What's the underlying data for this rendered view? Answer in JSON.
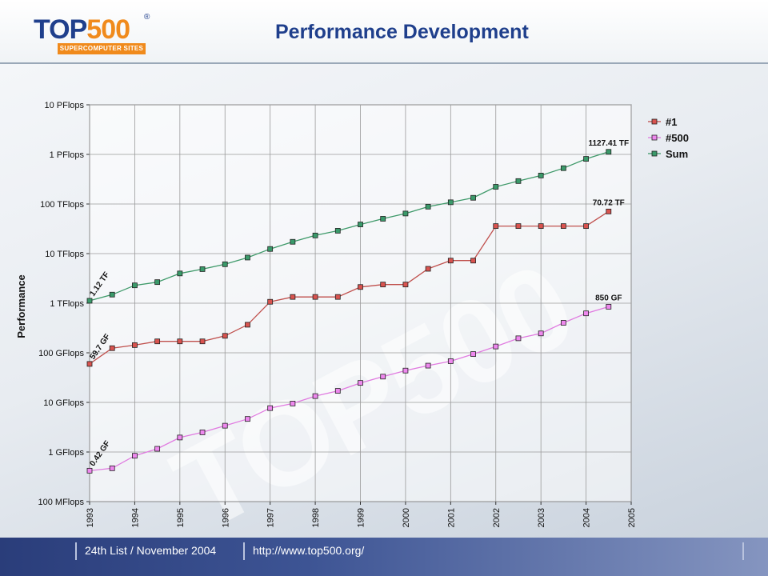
{
  "header": {
    "logo_text_top": "TOP",
    "logo_text_num": "500",
    "logo_reg": "®",
    "logo_sub": "SUPERCOMPUTER SITES",
    "title": "Performance Development"
  },
  "watermark": "TOP500",
  "footer": {
    "list_label": "24th List / November 2004",
    "url": "http://www.top500.org/"
  },
  "chart_data": {
    "type": "line",
    "title": "",
    "ylabel": "Performance",
    "xlabel": "",
    "y_scale": "log",
    "ylim_gflops": [
      0.1,
      10000000
    ],
    "y_ticks": [
      {
        "value": 10000000,
        "label": "10 PFlops"
      },
      {
        "value": 1000000,
        "label": "1 PFlops"
      },
      {
        "value": 100000,
        "label": "100 TFlops"
      },
      {
        "value": 10000,
        "label": "10 TFlops"
      },
      {
        "value": 1000,
        "label": "1 TFlops"
      },
      {
        "value": 100,
        "label": "100 GFlops"
      },
      {
        "value": 10,
        "label": "10 GFlops"
      },
      {
        "value": 1,
        "label": "1 GFlops"
      },
      {
        "value": 0.1,
        "label": "100 MFlops"
      }
    ],
    "x_ticks": [
      "1993",
      "1994",
      "1995",
      "1996",
      "1997",
      "1998",
      "1999",
      "2000",
      "2001",
      "2002",
      "2003",
      "2004",
      "2005"
    ],
    "xlim": [
      1993,
      2005
    ],
    "grid": true,
    "legend_position": "right",
    "x": [
      1993.0,
      1993.5,
      1994.0,
      1994.5,
      1995.0,
      1995.5,
      1996.0,
      1996.5,
      1997.0,
      1997.5,
      1998.0,
      1998.5,
      1999.0,
      1999.5,
      2000.0,
      2000.5,
      2001.0,
      2001.5,
      2002.0,
      2002.5,
      2003.0,
      2003.5,
      2004.0,
      2004.5
    ],
    "series": [
      {
        "name": "#1",
        "color": "#c0504d",
        "marker_fill": "#d9534f",
        "values": [
          59.7,
          124,
          143,
          170,
          170,
          170,
          220,
          368,
          1068,
          1338,
          1338,
          1338,
          2121,
          2379,
          2379,
          4938,
          7226,
          7226,
          35860,
          35860,
          35860,
          35860,
          35860,
          70720
        ]
      },
      {
        "name": "#500",
        "color": "#e07be0",
        "marker_fill": "#ee88ee",
        "values": [
          0.42,
          0.47,
          0.84,
          1.16,
          1.96,
          2.49,
          3.39,
          4.64,
          7.67,
          9.49,
          13.4,
          17.1,
          24.7,
          33.1,
          43.8,
          55.1,
          67.8,
          94.3,
          134,
          196,
          246,
          403,
          624,
          850
        ]
      },
      {
        "name": "Sum",
        "color": "#3f9a6a",
        "marker_fill": "#3a9a6a",
        "values": [
          1120,
          1490,
          2290,
          2660,
          3980,
          4860,
          6100,
          8320,
          12400,
          17300,
          23200,
          28900,
          38700,
          50400,
          64300,
          88300,
          108300,
          133400,
          222300,
          290000,
          375000,
          528000,
          813000,
          1127410
        ]
      }
    ],
    "annotations": [
      {
        "text": "1.12 TF",
        "series": "Sum",
        "point": 0,
        "rotated": true
      },
      {
        "text": "59.7 GF",
        "series": "#1",
        "point": 0,
        "rotated": true
      },
      {
        "text": "0.42 GF",
        "series": "#500",
        "point": 0,
        "rotated": true
      },
      {
        "text": "1127.41 TF",
        "series": "Sum",
        "point": 23,
        "rotated": false
      },
      {
        "text": "70.72 TF",
        "series": "#1",
        "point": 23,
        "rotated": false
      },
      {
        "text": "850 GF",
        "series": "#500",
        "point": 23,
        "rotated": false
      }
    ]
  }
}
